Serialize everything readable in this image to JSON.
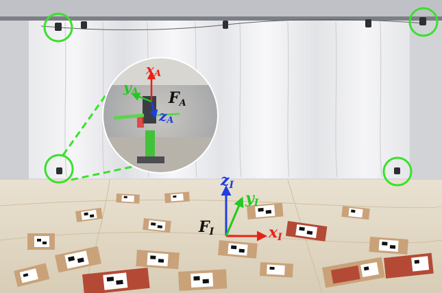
{
  "labels": {
    "world_frame": {
      "symbol": "F",
      "subscript": "I"
    },
    "world_axes": {
      "x": {
        "symbol": "x",
        "subscript": "I"
      },
      "y": {
        "symbol": "y",
        "subscript": "I"
      },
      "z": {
        "symbol": "z",
        "subscript": "I"
      }
    },
    "drone_frame": {
      "symbol": "F",
      "subscript": "A"
    },
    "drone_axes": {
      "x": {
        "symbol": "x",
        "subscript": "A"
      },
      "y": {
        "symbol": "y",
        "subscript": "A"
      },
      "z": {
        "symbol": "z",
        "subscript": "A"
      }
    }
  },
  "colors": {
    "x_axis": "#e8201a",
    "y_axis": "#22c91e",
    "z_axis": "#1f3fe0",
    "highlight": "#39e12b",
    "frame_label": "#111111"
  },
  "objects": {
    "tracking_cameras_highlighted": 4,
    "icons": [
      "motion-capture-camera-icon",
      "aruco-marker-icon",
      "drone-icon"
    ]
  }
}
